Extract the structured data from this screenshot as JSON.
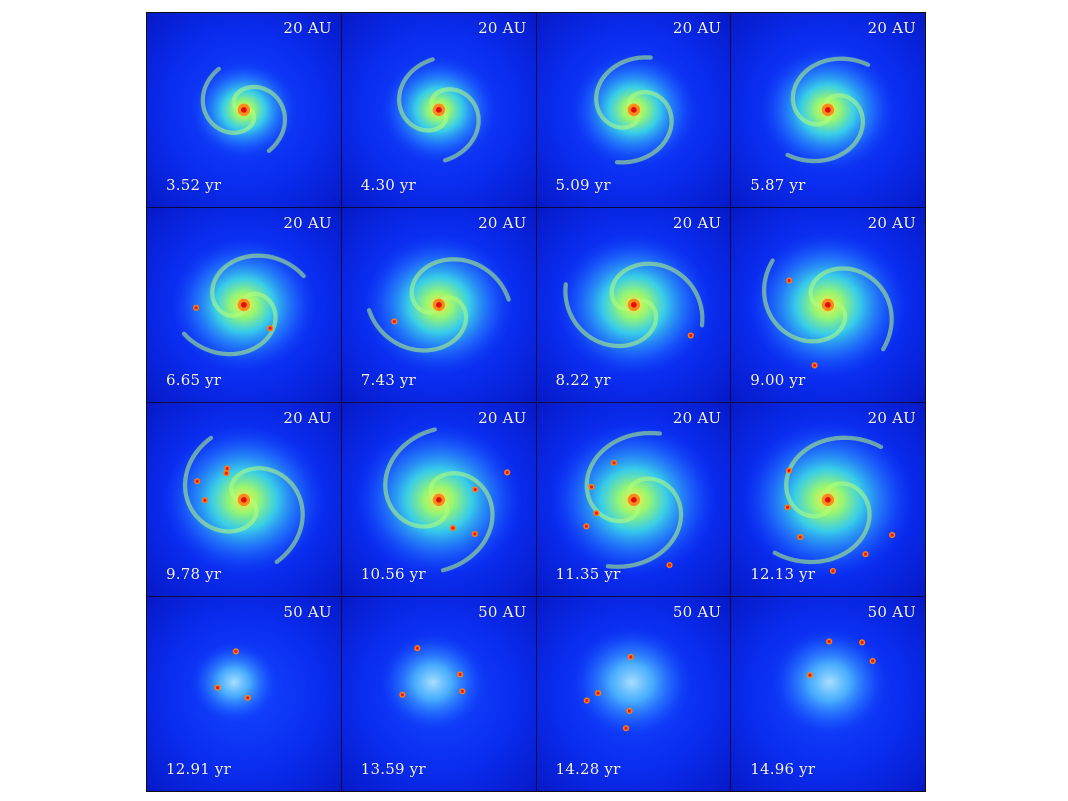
{
  "panels": [
    {
      "scale": "20 AU",
      "time": "3.52 yr",
      "clumps": 0,
      "size": 0.55
    },
    {
      "scale": "20 AU",
      "time": "4.30 yr",
      "clumps": 0,
      "size": 0.6
    },
    {
      "scale": "20 AU",
      "time": "5.09 yr",
      "clumps": 0,
      "size": 0.65
    },
    {
      "scale": "20 AU",
      "time": "5.87 yr",
      "clumps": 0,
      "size": 0.7
    },
    {
      "scale": "20 AU",
      "time": "6.65 yr",
      "clumps": 2,
      "size": 0.75
    },
    {
      "scale": "20 AU",
      "time": "7.43 yr",
      "clumps": 1,
      "size": 0.78
    },
    {
      "scale": "20 AU",
      "time": "8.22 yr",
      "clumps": 1,
      "size": 0.8
    },
    {
      "scale": "20 AU",
      "time": "9.00 yr",
      "clumps": 2,
      "size": 0.82
    },
    {
      "scale": "20 AU",
      "time": "9.78 yr",
      "clumps": 4,
      "size": 0.84
    },
    {
      "scale": "20 AU",
      "time": "10.56 yr",
      "clumps": 4,
      "size": 0.86
    },
    {
      "scale": "20 AU",
      "time": "11.35 yr",
      "clumps": 5,
      "size": 0.86
    },
    {
      "scale": "20 AU",
      "time": "12.13 yr",
      "clumps": 6,
      "size": 0.88
    },
    {
      "scale": "50 AU",
      "time": "12.91 yr",
      "clumps": 3,
      "size": 0.45
    },
    {
      "scale": "50 AU",
      "time": "13.59 yr",
      "clumps": 4,
      "size": 0.55
    },
    {
      "scale": "50 AU",
      "time": "14.28 yr",
      "clumps": 5,
      "size": 0.62
    },
    {
      "scale": "50 AU",
      "time": "14.96 yr",
      "clumps": 4,
      "size": 0.6
    }
  ]
}
